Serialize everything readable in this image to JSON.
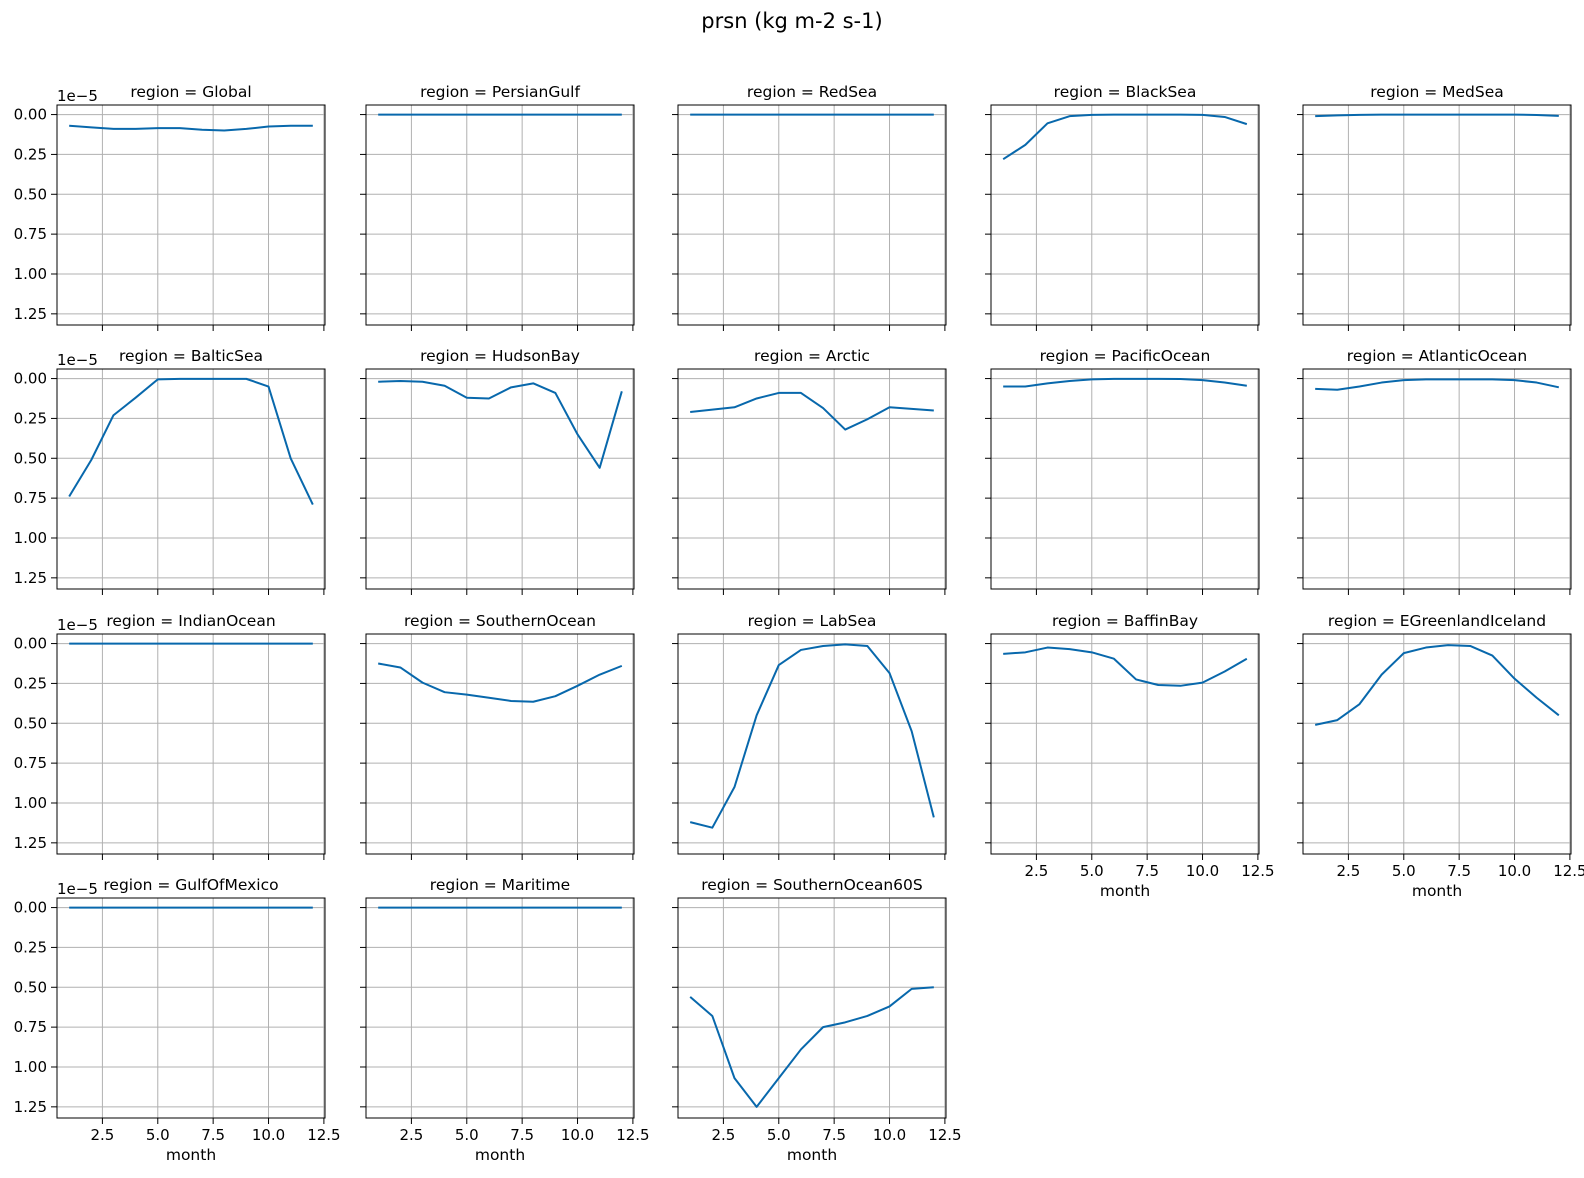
{
  "figure": {
    "title": "prsn (kg m-2 s-1)",
    "offset_label": "1e−5",
    "xlabel": "month"
  },
  "colors": {
    "line": "#0868ac",
    "grid": "#b0b0b0",
    "axis": "#000000"
  },
  "chart_data": {
    "type": "line",
    "layout": "facet-grid 4x5, shared axes",
    "x": [
      1,
      2,
      3,
      4,
      5,
      6,
      7,
      8,
      9,
      10,
      11,
      12
    ],
    "xlim": [
      0.45,
      12.55
    ],
    "ylim": [
      1.32,
      -0.06
    ],
    "y_inverted": true,
    "y_scale_factor": "1e-5",
    "xticks": [
      2.5,
      5.0,
      7.5,
      10.0,
      12.5
    ],
    "xtick_labels": [
      "2.5",
      "5.0",
      "7.5",
      "10.0",
      "12.5"
    ],
    "yticks": [
      0.0,
      0.25,
      0.5,
      0.75,
      1.0,
      1.25
    ],
    "ytick_labels": [
      "0.00",
      "0.25",
      "0.50",
      "0.75",
      "1.00",
      "1.25"
    ],
    "grid": true,
    "panels": [
      {
        "title": "region = Global",
        "values": [
          0.07,
          0.08,
          0.09,
          0.09,
          0.085,
          0.085,
          0.095,
          0.1,
          0.09,
          0.075,
          0.07,
          0.07
        ]
      },
      {
        "title": "region = PersianGulf",
        "values": [
          0,
          0,
          0,
          0,
          0,
          0,
          0,
          0,
          0,
          0,
          0,
          0
        ]
      },
      {
        "title": "region = RedSea",
        "values": [
          0,
          0,
          0,
          0,
          0,
          0,
          0,
          0,
          0,
          0,
          0,
          0
        ]
      },
      {
        "title": "region = BlackSea",
        "values": [
          0.28,
          0.19,
          0.055,
          0.01,
          0.002,
          0,
          0,
          0,
          0,
          0.002,
          0.015,
          0.06
        ]
      },
      {
        "title": "region = MedSea",
        "values": [
          0.01,
          0.005,
          0.002,
          0,
          0,
          0,
          0,
          0,
          0,
          0,
          0.003,
          0.008
        ]
      },
      {
        "title": "region = BalticSea",
        "values": [
          0.74,
          0.51,
          0.23,
          0.12,
          0.005,
          0.002,
          0.002,
          0.002,
          0.002,
          0.05,
          0.5,
          0.79
        ]
      },
      {
        "title": "region = HudsonBay",
        "values": [
          0.02,
          0.015,
          0.02,
          0.045,
          0.12,
          0.125,
          0.055,
          0.03,
          0.09,
          0.35,
          0.56,
          0.08
        ]
      },
      {
        "title": "region = Arctic",
        "values": [
          0.21,
          0.195,
          0.18,
          0.125,
          0.09,
          0.09,
          0.185,
          0.32,
          0.255,
          0.18,
          0.19,
          0.2
        ]
      },
      {
        "title": "region = PacificOcean",
        "values": [
          0.05,
          0.05,
          0.03,
          0.015,
          0.005,
          0.002,
          0.002,
          0.002,
          0.003,
          0.01,
          0.025,
          0.045
        ]
      },
      {
        "title": "region = AtlanticOcean",
        "values": [
          0.065,
          0.07,
          0.05,
          0.025,
          0.01,
          0.005,
          0.005,
          0.005,
          0.005,
          0.01,
          0.025,
          0.055
        ]
      },
      {
        "title": "region = IndianOcean",
        "values": [
          0,
          0,
          0,
          0,
          0,
          0,
          0,
          0,
          0,
          0,
          0,
          0
        ]
      },
      {
        "title": "region = SouthernOcean",
        "values": [
          0.125,
          0.15,
          0.245,
          0.305,
          0.32,
          0.34,
          0.36,
          0.365,
          0.33,
          0.265,
          0.195,
          0.14
        ]
      },
      {
        "title": "region = LabSea",
        "values": [
          1.12,
          1.155,
          0.9,
          0.45,
          0.135,
          0.04,
          0.015,
          0.005,
          0.015,
          0.185,
          0.55,
          1.09
        ]
      },
      {
        "title": "region = BaffinBay",
        "values": [
          0.065,
          0.055,
          0.025,
          0.035,
          0.055,
          0.095,
          0.225,
          0.26,
          0.265,
          0.245,
          0.175,
          0.095
        ]
      },
      {
        "title": "region = EGreenlandIceland",
        "values": [
          0.51,
          0.48,
          0.38,
          0.195,
          0.06,
          0.025,
          0.01,
          0.015,
          0.075,
          0.22,
          0.34,
          0.45
        ]
      },
      {
        "title": "region = GulfOfMexico",
        "values": [
          0,
          0,
          0,
          0,
          0,
          0,
          0,
          0,
          0,
          0,
          0,
          0
        ]
      },
      {
        "title": "region = Maritime",
        "values": [
          0,
          0,
          0,
          0,
          0,
          0,
          0,
          0,
          0,
          0,
          0,
          0
        ]
      },
      {
        "title": "region = SouthernOcean60S",
        "values": [
          0.56,
          0.68,
          1.07,
          1.25,
          1.07,
          0.89,
          0.75,
          0.72,
          0.68,
          0.62,
          0.51,
          0.5
        ]
      }
    ]
  }
}
